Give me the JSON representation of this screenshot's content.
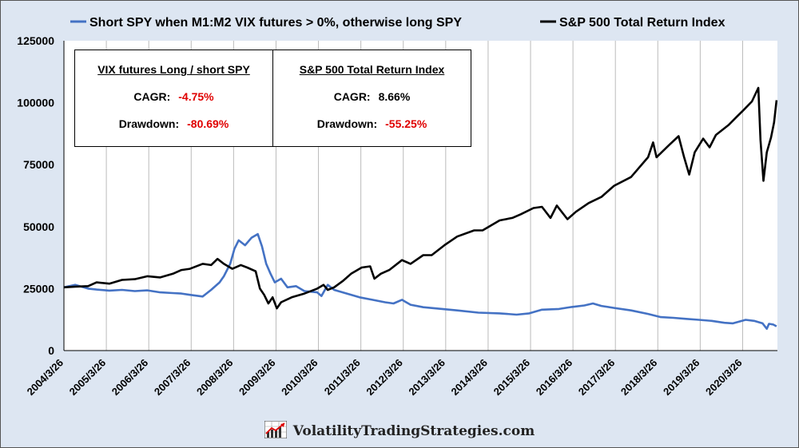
{
  "chart_data": {
    "type": "line",
    "x_labels": [
      "2004/3/26",
      "2005/3/26",
      "2006/3/26",
      "2007/3/26",
      "2008/3/26",
      "2009/3/26",
      "2010/3/26",
      "2011/3/26",
      "2012/3/26",
      "2013/3/26",
      "2014/3/26",
      "2015/3/26",
      "2016/3/26",
      "2017/3/26",
      "2018/3/26",
      "2019/3/26",
      "2020/3/26"
    ],
    "ylim": [
      0,
      125000
    ],
    "y_ticks": [
      "0",
      "25000",
      "50000",
      "75000",
      "100000",
      "125000"
    ],
    "grid": "vertical",
    "legend_position": "top",
    "series": [
      {
        "name": "Short SPY when M1:M2 VIX futures > 0%, otherwise long SPY",
        "color": "#4472c4",
        "points": [
          [
            2004.23,
            25500
          ],
          [
            2004.5,
            26500
          ],
          [
            2004.8,
            25000
          ],
          [
            2005.0,
            24600
          ],
          [
            2005.3,
            24200
          ],
          [
            2005.6,
            24500
          ],
          [
            2005.9,
            24000
          ],
          [
            2006.2,
            24300
          ],
          [
            2006.5,
            23500
          ],
          [
            2006.8,
            23200
          ],
          [
            2007.0,
            23000
          ],
          [
            2007.2,
            22500
          ],
          [
            2007.5,
            21800
          ],
          [
            2007.7,
            24500
          ],
          [
            2007.9,
            27500
          ],
          [
            2008.0,
            30000
          ],
          [
            2008.15,
            35000
          ],
          [
            2008.25,
            41000
          ],
          [
            2008.35,
            44500
          ],
          [
            2008.5,
            42500
          ],
          [
            2008.65,
            45500
          ],
          [
            2008.8,
            47000
          ],
          [
            2008.9,
            42000
          ],
          [
            2009.0,
            35000
          ],
          [
            2009.1,
            31000
          ],
          [
            2009.2,
            27500
          ],
          [
            2009.35,
            29000
          ],
          [
            2009.5,
            25500
          ],
          [
            2009.7,
            26000
          ],
          [
            2009.9,
            24000
          ],
          [
            2010.2,
            23500
          ],
          [
            2010.3,
            22000
          ],
          [
            2010.45,
            26500
          ],
          [
            2010.6,
            24500
          ],
          [
            2010.9,
            23000
          ],
          [
            2011.2,
            21500
          ],
          [
            2011.5,
            20500
          ],
          [
            2011.8,
            19500
          ],
          [
            2012.0,
            19000
          ],
          [
            2012.2,
            20500
          ],
          [
            2012.4,
            18500
          ],
          [
            2012.7,
            17500
          ],
          [
            2013.0,
            17000
          ],
          [
            2013.5,
            16200
          ],
          [
            2014.0,
            15300
          ],
          [
            2014.5,
            15000
          ],
          [
            2014.9,
            14500
          ],
          [
            2015.2,
            15000
          ],
          [
            2015.5,
            16500
          ],
          [
            2015.9,
            16800
          ],
          [
            2016.2,
            17600
          ],
          [
            2016.5,
            18200
          ],
          [
            2016.7,
            19000
          ],
          [
            2016.9,
            18000
          ],
          [
            2017.2,
            17200
          ],
          [
            2017.6,
            16200
          ],
          [
            2018.0,
            14800
          ],
          [
            2018.3,
            13500
          ],
          [
            2018.6,
            13200
          ],
          [
            2018.9,
            12800
          ],
          [
            2019.2,
            12400
          ],
          [
            2019.5,
            12000
          ],
          [
            2019.8,
            11200
          ],
          [
            2020.0,
            11000
          ],
          [
            2020.3,
            12400
          ],
          [
            2020.5,
            12000
          ],
          [
            2020.7,
            11000
          ],
          [
            2020.8,
            8800
          ],
          [
            2020.85,
            10800
          ],
          [
            2020.95,
            10500
          ],
          [
            2021.03,
            9800
          ]
        ]
      },
      {
        "name": "S&P 500 Total Return Index",
        "color": "#000000",
        "points": [
          [
            2004.23,
            25500
          ],
          [
            2004.5,
            25800
          ],
          [
            2004.8,
            26000
          ],
          [
            2005.0,
            27500
          ],
          [
            2005.3,
            27000
          ],
          [
            2005.6,
            28500
          ],
          [
            2005.9,
            28800
          ],
          [
            2006.2,
            30000
          ],
          [
            2006.5,
            29500
          ],
          [
            2006.8,
            31000
          ],
          [
            2007.0,
            32500
          ],
          [
            2007.2,
            33000
          ],
          [
            2007.5,
            35000
          ],
          [
            2007.7,
            34500
          ],
          [
            2007.85,
            37000
          ],
          [
            2008.0,
            35000
          ],
          [
            2008.2,
            33000
          ],
          [
            2008.4,
            34500
          ],
          [
            2008.55,
            33500
          ],
          [
            2008.75,
            32000
          ],
          [
            2008.85,
            25000
          ],
          [
            2008.95,
            22500
          ],
          [
            2009.05,
            19000
          ],
          [
            2009.15,
            21500
          ],
          [
            2009.25,
            17000
          ],
          [
            2009.35,
            19500
          ],
          [
            2009.6,
            21500
          ],
          [
            2009.9,
            23000
          ],
          [
            2010.2,
            25000
          ],
          [
            2010.35,
            26500
          ],
          [
            2010.45,
            24500
          ],
          [
            2010.6,
            25500
          ],
          [
            2010.8,
            28000
          ],
          [
            2011.0,
            31000
          ],
          [
            2011.25,
            33500
          ],
          [
            2011.45,
            34000
          ],
          [
            2011.55,
            29000
          ],
          [
            2011.7,
            31000
          ],
          [
            2011.9,
            32500
          ],
          [
            2012.2,
            36500
          ],
          [
            2012.4,
            35000
          ],
          [
            2012.7,
            38500
          ],
          [
            2012.9,
            38500
          ],
          [
            2013.2,
            42500
          ],
          [
            2013.5,
            46000
          ],
          [
            2013.9,
            48500
          ],
          [
            2014.1,
            48500
          ],
          [
            2014.5,
            52500
          ],
          [
            2014.8,
            53500
          ],
          [
            2015.0,
            55000
          ],
          [
            2015.3,
            57500
          ],
          [
            2015.5,
            58000
          ],
          [
            2015.7,
            53500
          ],
          [
            2015.85,
            58500
          ],
          [
            2016.1,
            53000
          ],
          [
            2016.3,
            56000
          ],
          [
            2016.6,
            59500
          ],
          [
            2016.9,
            62000
          ],
          [
            2017.2,
            66500
          ],
          [
            2017.6,
            70000
          ],
          [
            2018.0,
            78000
          ],
          [
            2018.12,
            84000
          ],
          [
            2018.2,
            78000
          ],
          [
            2018.5,
            83000
          ],
          [
            2018.72,
            86500
          ],
          [
            2018.85,
            78000
          ],
          [
            2018.97,
            71000
          ],
          [
            2019.1,
            80000
          ],
          [
            2019.3,
            85500
          ],
          [
            2019.45,
            82000
          ],
          [
            2019.6,
            87000
          ],
          [
            2019.9,
            91000
          ],
          [
            2020.1,
            94500
          ],
          [
            2020.25,
            97000
          ],
          [
            2020.45,
            100500
          ],
          [
            2020.6,
            106000
          ],
          [
            2020.65,
            85000
          ],
          [
            2020.72,
            68500
          ],
          [
            2020.8,
            80000
          ],
          [
            2020.9,
            86000
          ],
          [
            2020.97,
            92000
          ],
          [
            2021.03,
            101000
          ]
        ]
      }
    ]
  },
  "stats": {
    "left": {
      "heading": "VIX futures Long / short SPY",
      "cagr_label": "CAGR:",
      "cagr_value": "-4.75%",
      "dd_label": "Drawdown:",
      "dd_value": "-80.69%"
    },
    "right": {
      "heading": "S&P 500 Total Return Index",
      "cagr_label": "CAGR:",
      "cagr_value": "8.66%",
      "dd_label": "Drawdown:",
      "dd_value": "-55.25%"
    },
    "negative_color": "#e00000"
  },
  "watermark": {
    "text": "VolatilityTradingStrategies.com"
  }
}
